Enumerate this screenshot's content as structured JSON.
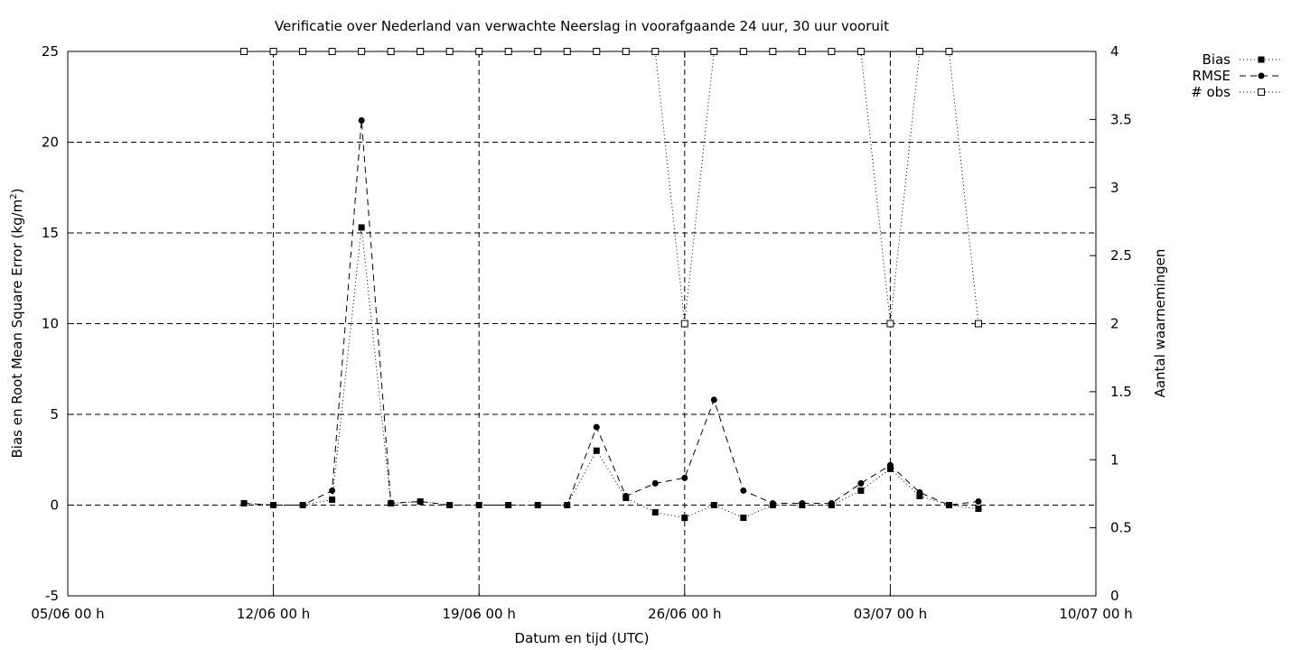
{
  "chart_data": {
    "type": "line",
    "title": "Verificatie over Nederland van verwachte Neerslag in voorafgaande 24 uur, 30 uur vooruit",
    "xlabel": "Datum en tijd (UTC)",
    "ylabel_main": "Bias en Root Mean Square Error (kg/m",
    "ylabel_sup": "2",
    "ylabel_close": ")",
    "y2label": "Aantal waarnemingen",
    "x_range_days": [
      0,
      35
    ],
    "x_tick_labels": [
      "05/06 00 h",
      "12/06 00 h",
      "19/06 00 h",
      "26/06 00 h",
      "03/07 00 h",
      "10/07 00 h"
    ],
    "ylim": [
      -5,
      25
    ],
    "y_tick_labels": [
      "-5",
      "0",
      "5",
      "10",
      "15",
      "20",
      "25"
    ],
    "y2lim": [
      0,
      4
    ],
    "y2_tick_labels": [
      "0",
      "0.5",
      "1",
      "1.5",
      "2",
      "2.5",
      "3",
      "3.5",
      "4"
    ],
    "grid": true,
    "legend_position": "top-right outside",
    "x": [
      "11/06 00 h",
      "12/06 00 h",
      "13/06 00 h",
      "14/06 00 h",
      "15/06 00 h",
      "16/06 00 h",
      "17/06 00 h",
      "18/06 00 h",
      "19/06 00 h",
      "20/06 00 h",
      "21/06 00 h",
      "22/06 00 h",
      "23/06 00 h",
      "24/06 00 h",
      "25/06 00 h",
      "26/06 00 h",
      "27/06 00 h",
      "28/06 00 h",
      "29/06 00 h",
      "30/06 00 h",
      "01/07 00 h",
      "02/07 00 h",
      "03/07 00 h",
      "04/07 00 h",
      "05/07 00 h",
      "06/07 00 h"
    ],
    "series": [
      {
        "name": "Bias",
        "axis": "left",
        "marker": "filled-square",
        "line": "dotted",
        "values": [
          0.1,
          0.0,
          0.0,
          0.3,
          15.3,
          0.1,
          0.2,
          0.0,
          0.0,
          0.0,
          0.0,
          0.0,
          3.0,
          0.4,
          -0.4,
          -0.7,
          0.0,
          -0.7,
          0.0,
          0.0,
          0.0,
          0.8,
          2.0,
          0.5,
          0.0,
          -0.2
        ]
      },
      {
        "name": "RMSE",
        "axis": "left",
        "marker": "filled-circle",
        "line": "dashed",
        "values": [
          0.1,
          0.0,
          0.0,
          0.8,
          21.2,
          0.1,
          0.2,
          0.0,
          0.0,
          0.0,
          0.0,
          0.0,
          4.3,
          0.5,
          1.2,
          1.5,
          5.8,
          0.8,
          0.1,
          0.1,
          0.1,
          1.2,
          2.2,
          0.7,
          0.0,
          0.2
        ]
      },
      {
        "name": "# obs",
        "axis": "right",
        "marker": "open-square",
        "line": "dotted",
        "values": [
          4,
          4,
          4,
          4,
          4,
          4,
          4,
          4,
          4,
          4,
          4,
          4,
          4,
          4,
          4,
          2,
          4,
          4,
          4,
          4,
          4,
          4,
          2,
          4,
          4,
          2
        ]
      }
    ]
  }
}
